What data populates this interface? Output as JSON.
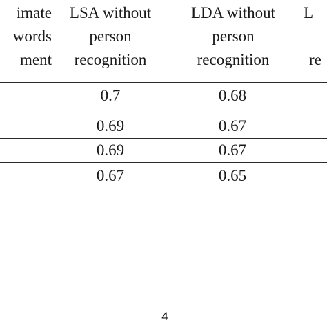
{
  "table": {
    "headers": [
      [
        "imate",
        "words",
        "ment"
      ],
      [
        "LSA without",
        "person",
        "recognition"
      ],
      [
        "LDA without",
        "person",
        "recognition"
      ],
      [
        "L",
        "re"
      ]
    ],
    "rows": [
      [
        "0.7",
        "0.68"
      ],
      [
        "0.69",
        "0.67"
      ],
      [
        "0.69",
        "0.67"
      ],
      [
        "0.67",
        "0.65"
      ]
    ]
  },
  "footer": {
    "page_number": "4"
  }
}
